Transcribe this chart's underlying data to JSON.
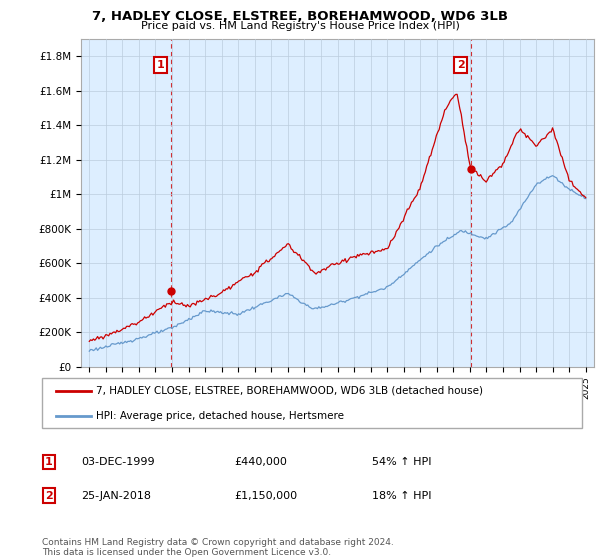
{
  "title": "7, HADLEY CLOSE, ELSTREE, BOREHAMWOOD, WD6 3LB",
  "subtitle": "Price paid vs. HM Land Registry's House Price Index (HPI)",
  "legend_label_red": "7, HADLEY CLOSE, ELSTREE, BOREHAMWOOD, WD6 3LB (detached house)",
  "legend_label_blue": "HPI: Average price, detached house, Hertsmere",
  "sale1_date": "03-DEC-1999",
  "sale1_price": "£440,000",
  "sale1_hpi": "54% ↑ HPI",
  "sale2_date": "25-JAN-2018",
  "sale2_price": "£1,150,000",
  "sale2_hpi": "18% ↑ HPI",
  "footer": "Contains HM Land Registry data © Crown copyright and database right 2024.\nThis data is licensed under the Open Government Licence v3.0.",
  "ylim": [
    0,
    1900000
  ],
  "yticks": [
    0,
    200000,
    400000,
    600000,
    800000,
    1000000,
    1200000,
    1400000,
    1600000,
    1800000
  ],
  "ytick_labels": [
    "£0",
    "£200K",
    "£400K",
    "£600K",
    "£800K",
    "£1M",
    "£1.2M",
    "£1.4M",
    "£1.6M",
    "£1.8M"
  ],
  "red_color": "#cc0000",
  "blue_color": "#6699cc",
  "sale1_year": 1999.92,
  "sale1_value": 440000,
  "sale2_year": 2018.07,
  "sale2_value": 1150000,
  "chart_bg": "#ddeeff",
  "grid_color": "#bbccdd",
  "outer_bg": "#ffffff"
}
